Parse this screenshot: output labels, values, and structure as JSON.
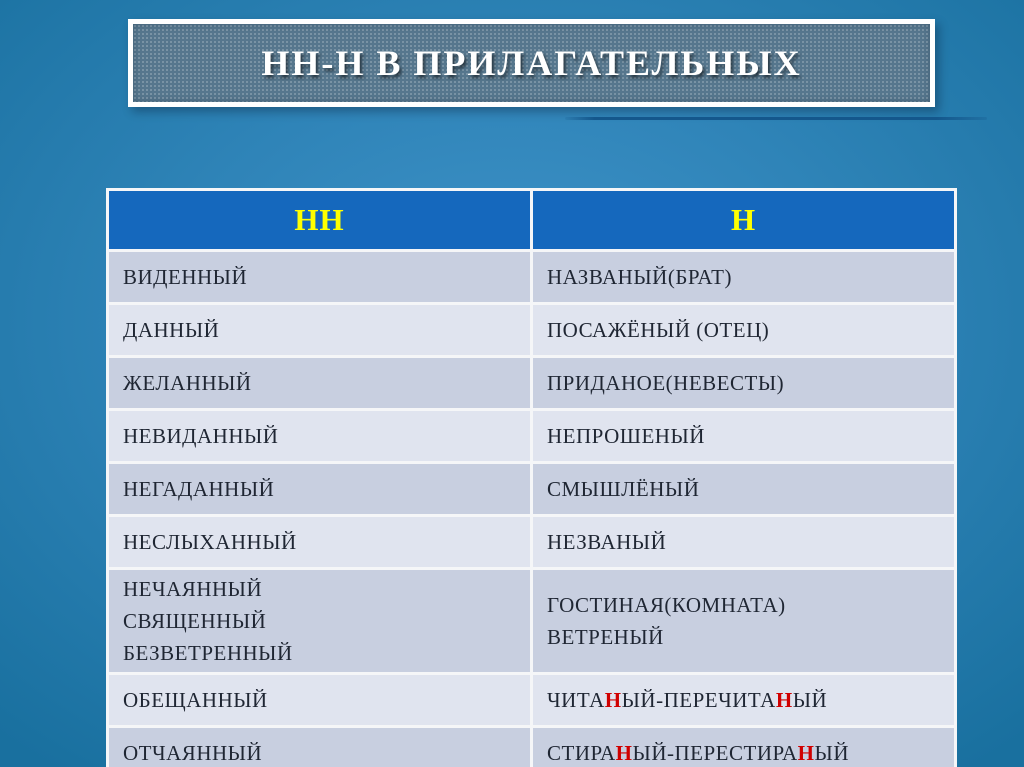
{
  "slide": {
    "title": "НН-Н В ПРИЛАГАТЕЛЬНЫХ"
  },
  "colors": {
    "bg_center": "#3f93c9",
    "bg_edge": "#19709f",
    "title_box_bg": "#56778e",
    "underline": "#14578c",
    "header_bg": "#1568bd",
    "header_text": "#ffff00",
    "row_dark": "#c8cfe0",
    "row_light": "#e0e4ef",
    "cell_text": "#1f2633",
    "red_letter": "#d00000"
  },
  "table": {
    "headers": [
      "НН",
      "Н"
    ],
    "rows": [
      {
        "nn": [
          [
            "ВИДЕННЫЙ"
          ]
        ],
        "n": [
          [
            "НАЗВАНЫЙ(БРАТ)"
          ]
        ]
      },
      {
        "nn": [
          [
            "ДАННЫЙ"
          ]
        ],
        "n": [
          [
            "ПОСАЖЁНЫЙ (ОТЕЦ)"
          ]
        ]
      },
      {
        "nn": [
          [
            "ЖЕЛАННЫЙ"
          ]
        ],
        "n": [
          [
            "ПРИДАНОЕ(НЕВЕСТЫ)"
          ]
        ]
      },
      {
        "nn": [
          [
            "НЕВИДАННЫЙ"
          ]
        ],
        "n": [
          [
            "НЕПРОШЕНЫЙ"
          ]
        ]
      },
      {
        "nn": [
          [
            "НЕГАДАННЫЙ"
          ]
        ],
        "n": [
          [
            "СМЫШЛЁНЫЙ"
          ]
        ]
      },
      {
        "nn": [
          [
            "НЕСЛЫХАННЫЙ"
          ]
        ],
        "n": [
          [
            "НЕЗВАНЫЙ"
          ]
        ]
      },
      {
        "nn": [
          [
            "НЕЧАЯННЫЙ"
          ],
          [
            "СВЯЩЕННЫЙ"
          ],
          [
            "БЕЗВЕТРЕННЫЙ"
          ]
        ],
        "n": [
          [
            "ГОСТИНАЯ(КОМНАТА)"
          ],
          [
            "ВЕТРЕНЫЙ"
          ]
        ]
      },
      {
        "nn": [
          [
            "ОБЕЩАННЫЙ"
          ]
        ],
        "n": [
          [
            "ЧИТА",
            {
              "text": "Н",
              "red": true
            },
            "ЫЙ-ПЕРЕЧИТА",
            {
              "text": "Н",
              "red": true
            },
            "ЫЙ"
          ]
        ]
      },
      {
        "nn": [
          [
            "ОТЧАЯННЫЙ"
          ]
        ],
        "n": [
          [
            "СТИРА",
            {
              "text": "Н",
              "red": true
            },
            "ЫЙ-ПЕРЕСТИРА",
            {
              "text": "Н",
              "red": true
            },
            "ЫЙ"
          ]
        ]
      }
    ]
  }
}
